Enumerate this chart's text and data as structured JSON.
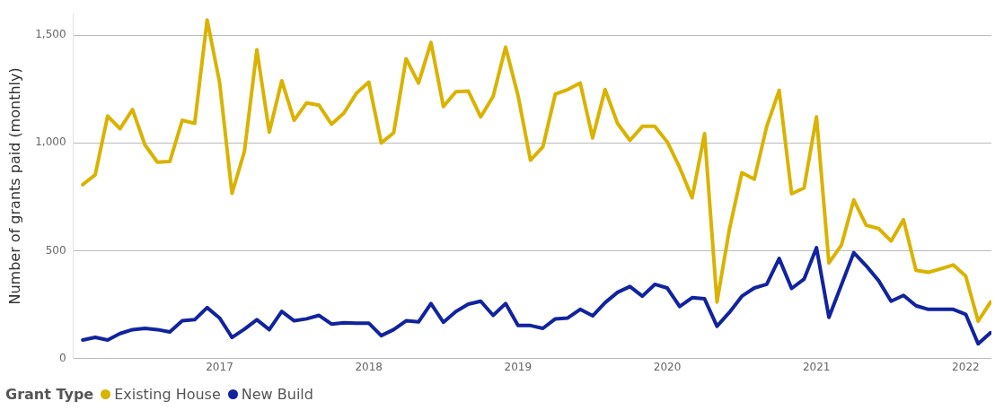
{
  "chart_data": {
    "type": "line",
    "ylabel": "Number of grants paid (monthly)",
    "legend_title": "Grant Type",
    "x": [
      "2016-02",
      "2016-03",
      "2016-04",
      "2016-05",
      "2016-06",
      "2016-07",
      "2016-08",
      "2016-09",
      "2016-10",
      "2016-11",
      "2016-12",
      "2017-01",
      "2017-02",
      "2017-03",
      "2017-04",
      "2017-05",
      "2017-06",
      "2017-07",
      "2017-08",
      "2017-09",
      "2017-10",
      "2017-11",
      "2017-12",
      "2018-01",
      "2018-02",
      "2018-03",
      "2018-04",
      "2018-05",
      "2018-06",
      "2018-07",
      "2018-08",
      "2018-09",
      "2018-10",
      "2018-11",
      "2018-12",
      "2019-01",
      "2019-02",
      "2019-03",
      "2019-04",
      "2019-05",
      "2019-06",
      "2019-07",
      "2019-08",
      "2019-09",
      "2019-10",
      "2019-11",
      "2019-12",
      "2020-01",
      "2020-02",
      "2020-03",
      "2020-04",
      "2020-05",
      "2020-06",
      "2020-07",
      "2020-08",
      "2020-09",
      "2020-10",
      "2020-11",
      "2020-12",
      "2021-01",
      "2021-02",
      "2021-03",
      "2021-04",
      "2021-05",
      "2021-06",
      "2021-07",
      "2021-08",
      "2021-09",
      "2021-10",
      "2021-11",
      "2021-12",
      "2022-01",
      "2022-02",
      "2022-03"
    ],
    "series": [
      {
        "name": "Existing House",
        "color": "#d9b300",
        "values": [
          807,
          852,
          1125,
          1066,
          1155,
          991,
          911,
          914,
          1105,
          1091,
          1571,
          1282,
          766,
          961,
          1432,
          1050,
          1289,
          1105,
          1186,
          1175,
          1087,
          1139,
          1230,
          1282,
          1000,
          1047,
          1391,
          1278,
          1466,
          1169,
          1238,
          1241,
          1121,
          1216,
          1445,
          1220,
          920,
          982,
          1227,
          1248,
          1278,
          1023,
          1248,
          1091,
          1012,
          1077,
          1077,
          1005,
          886,
          746,
          1043,
          262,
          600,
          862,
          832,
          1077,
          1244,
          764,
          791,
          1121,
          443,
          525,
          736,
          618,
          603,
          545,
          644,
          409,
          400,
          416,
          434,
          382,
          173,
          262
        ]
      },
      {
        "name": "New Build",
        "color": "#12239e",
        "values": [
          86,
          98,
          86,
          116,
          134,
          140,
          134,
          123,
          175,
          180,
          236,
          188,
          98,
          136,
          180,
          134,
          218,
          175,
          184,
          200,
          160,
          166,
          164,
          164,
          106,
          134,
          175,
          170,
          255,
          168,
          218,
          252,
          266,
          200,
          255,
          153,
          153,
          140,
          184,
          188,
          228,
          198,
          259,
          307,
          334,
          289,
          344,
          327,
          241,
          282,
          277,
          150,
          214,
          289,
          327,
          344,
          464,
          325,
          368,
          514,
          191,
          341,
          491,
          430,
          361,
          266,
          293,
          245,
          228,
          228,
          228,
          205,
          68,
          120
        ]
      }
    ],
    "xlim": [
      "2016-01-08",
      "2022-03-03"
    ],
    "xticks": [
      {
        "value": "2017-01",
        "label": "2017"
      },
      {
        "value": "2018-01",
        "label": "2018"
      },
      {
        "value": "2019-01",
        "label": "2019"
      },
      {
        "value": "2020-01",
        "label": "2020"
      },
      {
        "value": "2021-01",
        "label": "2021"
      },
      {
        "value": "2022-01",
        "label": "2022"
      }
    ],
    "ylim": [
      0,
      1600
    ],
    "yticks": [
      0,
      {
        "value": 500,
        "label": "500"
      },
      {
        "value": 1000,
        "label": "1,000"
      },
      {
        "value": 1500,
        "label": "1,500"
      }
    ],
    "grid": "y",
    "legend": "bottom left",
    "marker": "none",
    "line_style": "solid"
  }
}
